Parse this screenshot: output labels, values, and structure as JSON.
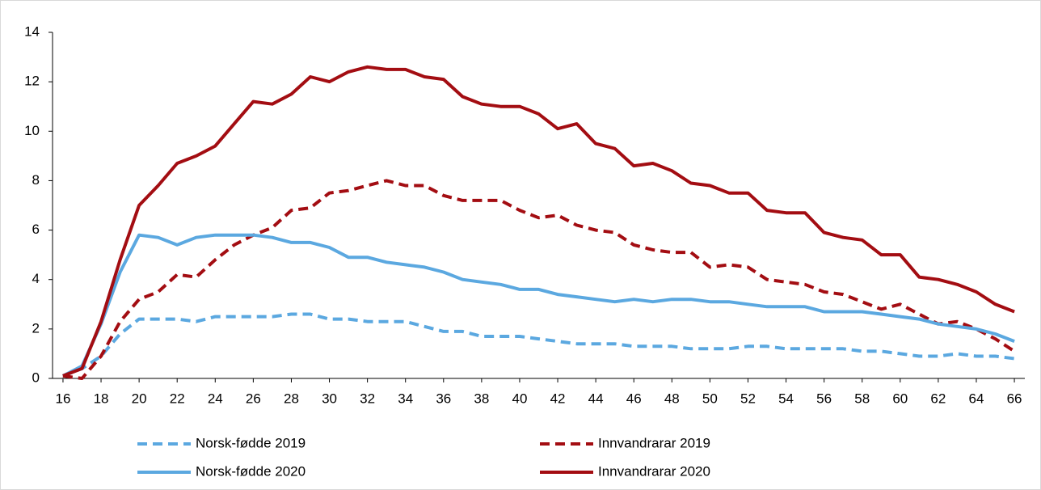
{
  "chart_data": {
    "type": "line",
    "x": [
      16,
      17,
      18,
      19,
      20,
      21,
      22,
      23,
      24,
      25,
      26,
      27,
      28,
      29,
      30,
      31,
      32,
      33,
      34,
      35,
      36,
      37,
      38,
      39,
      40,
      41,
      42,
      43,
      44,
      45,
      46,
      47,
      48,
      49,
      50,
      51,
      52,
      53,
      54,
      55,
      56,
      57,
      58,
      59,
      60,
      61,
      62,
      63,
      64,
      65,
      66
    ],
    "series": [
      {
        "name": "Norsk-fødde 2019",
        "color": "#5ba8e0",
        "dashed": true,
        "values": [
          0.1,
          0.4,
          0.9,
          1.8,
          2.4,
          2.4,
          2.4,
          2.3,
          2.5,
          2.5,
          2.5,
          2.5,
          2.6,
          2.6,
          2.4,
          2.4,
          2.3,
          2.3,
          2.3,
          2.1,
          1.9,
          1.9,
          1.7,
          1.7,
          1.7,
          1.6,
          1.5,
          1.4,
          1.4,
          1.4,
          1.3,
          1.3,
          1.3,
          1.2,
          1.2,
          1.2,
          1.3,
          1.3,
          1.2,
          1.2,
          1.2,
          1.2,
          1.1,
          1.1,
          1.0,
          0.9,
          0.9,
          1.0,
          0.9,
          0.9,
          0.8
        ]
      },
      {
        "name": "Innvandrarar 2019",
        "color": "#a30d12",
        "dashed": true,
        "values": [
          0.1,
          0.0,
          0.9,
          2.3,
          3.2,
          3.5,
          4.2,
          4.1,
          4.8,
          5.4,
          5.8,
          6.1,
          6.8,
          6.9,
          7.5,
          7.6,
          7.8,
          8.0,
          7.8,
          7.8,
          7.4,
          7.2,
          7.2,
          7.2,
          6.8,
          6.5,
          6.6,
          6.2,
          6.0,
          5.9,
          5.4,
          5.2,
          5.1,
          5.1,
          4.5,
          4.6,
          4.5,
          4.0,
          3.9,
          3.8,
          3.5,
          3.4,
          3.1,
          2.8,
          3.0,
          2.6,
          2.2,
          2.3,
          2.0,
          1.6,
          1.1
        ]
      },
      {
        "name": "Norsk-fødde 2020",
        "color": "#5ba8e0",
        "dashed": false,
        "values": [
          0.1,
          0.5,
          2.2,
          4.3,
          5.8,
          5.7,
          5.4,
          5.7,
          5.8,
          5.8,
          5.8,
          5.7,
          5.5,
          5.5,
          5.3,
          4.9,
          4.9,
          4.7,
          4.6,
          4.5,
          4.3,
          4.0,
          3.9,
          3.8,
          3.6,
          3.6,
          3.4,
          3.3,
          3.2,
          3.1,
          3.2,
          3.1,
          3.2,
          3.2,
          3.1,
          3.1,
          3.0,
          2.9,
          2.9,
          2.9,
          2.7,
          2.7,
          2.7,
          2.6,
          2.5,
          2.4,
          2.2,
          2.1,
          2.0,
          1.8,
          1.5
        ]
      },
      {
        "name": "Innvandrarar 2020",
        "color": "#a30d12",
        "dashed": false,
        "values": [
          0.1,
          0.4,
          2.3,
          4.8,
          7.0,
          7.8,
          8.7,
          9.0,
          9.4,
          10.3,
          11.2,
          11.1,
          11.5,
          12.2,
          12.0,
          12.4,
          12.6,
          12.5,
          12.5,
          12.2,
          12.1,
          11.4,
          11.1,
          11.0,
          11.0,
          10.7,
          10.1,
          10.3,
          9.5,
          9.3,
          8.6,
          8.7,
          8.4,
          7.9,
          7.8,
          7.5,
          7.5,
          6.8,
          6.7,
          6.7,
          5.9,
          5.7,
          5.6,
          5.0,
          5.0,
          4.1,
          4.0,
          3.8,
          3.5,
          3.0,
          2.7
        ]
      }
    ],
    "xlim": [
      15.45,
      66.55
    ],
    "xticks": [
      16,
      18,
      20,
      22,
      24,
      26,
      28,
      30,
      32,
      34,
      36,
      38,
      40,
      42,
      44,
      46,
      48,
      50,
      52,
      54,
      56,
      58,
      60,
      62,
      64,
      66
    ],
    "ylim": [
      0,
      14
    ],
    "yticks": [
      0,
      2,
      4,
      6,
      8,
      10,
      12,
      14
    ]
  }
}
